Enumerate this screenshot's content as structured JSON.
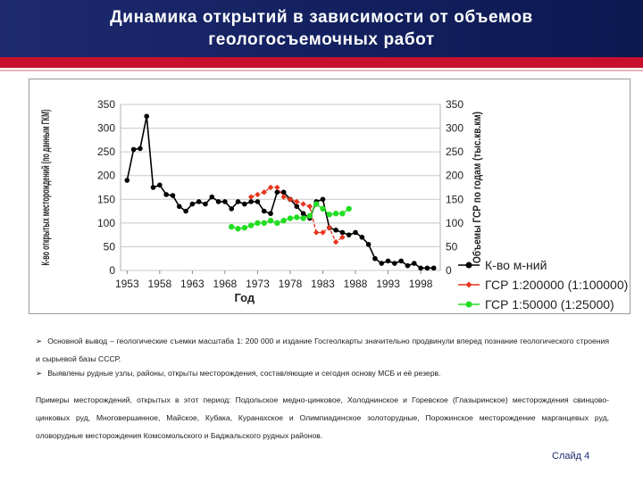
{
  "header": {
    "title_line1": "Динамика открытий в зависимости от объемов",
    "title_line2": "геологосъемочных работ"
  },
  "colors": {
    "header_bg": "#13205f",
    "accent_red": "#c8102e",
    "series_black": "#000000",
    "series_red": "#e8341c",
    "series_green": "#22dd22"
  },
  "chart_data": {
    "type": "line",
    "x_ticks": [
      1953,
      1958,
      1963,
      1968,
      1973,
      1978,
      1983,
      1988,
      1993,
      1998
    ],
    "y_ticks": [
      0,
      50,
      100,
      150,
      200,
      250,
      300,
      350
    ],
    "ylim": [
      0,
      350
    ],
    "xlim": [
      1952,
      2001
    ],
    "xlabel": "Год",
    "ylabel_left": "К-во открытых месторождений (по данным ГКМ)",
    "ylabel_right": "Объемы ГСР по годам (тыс.кв.км)",
    "legend_position": "right",
    "series": [
      {
        "name": "К-во м-ний",
        "color": "#000000",
        "marker": "circle",
        "x": [
          1953,
          1954,
          1955,
          1956,
          1957,
          1958,
          1959,
          1960,
          1961,
          1962,
          1963,
          1964,
          1965,
          1966,
          1967,
          1968,
          1969,
          1970,
          1971,
          1972,
          1973,
          1974,
          1975,
          1976,
          1977,
          1978,
          1979,
          1980,
          1981,
          1982,
          1983,
          1984,
          1985,
          1986,
          1987,
          1988,
          1989,
          1990,
          1991,
          1992,
          1993,
          1994,
          1995,
          1996,
          1997,
          1998,
          1999,
          2000
        ],
        "values": [
          190,
          255,
          257,
          325,
          175,
          180,
          160,
          158,
          135,
          125,
          140,
          145,
          140,
          155,
          145,
          145,
          130,
          145,
          140,
          145,
          145,
          125,
          120,
          165,
          165,
          150,
          135,
          120,
          110,
          145,
          150,
          90,
          85,
          80,
          75,
          80,
          70,
          55,
          25,
          15,
          20,
          15,
          20,
          10,
          15,
          5,
          5,
          5
        ]
      },
      {
        "name": "ГСР 1:200000 (1:100000)",
        "color": "#e8341c",
        "marker": "diamond",
        "x": [
          1972,
          1973,
          1974,
          1975,
          1976,
          1977,
          1978,
          1979,
          1980,
          1981,
          1982,
          1983,
          1984,
          1985,
          1986
        ],
        "values": [
          155,
          160,
          165,
          175,
          175,
          155,
          150,
          145,
          140,
          135,
          80,
          80,
          90,
          60,
          70
        ]
      },
      {
        "name": "ГСР 1:50000 (1:25000)",
        "color": "#22dd22",
        "marker": "circle",
        "x": [
          1969,
          1970,
          1971,
          1972,
          1973,
          1974,
          1975,
          1976,
          1977,
          1978,
          1979,
          1980,
          1981,
          1982,
          1983,
          1984,
          1985,
          1986,
          1987
        ],
        "values": [
          92,
          88,
          90,
          95,
          100,
          100,
          105,
          100,
          105,
          110,
          112,
          110,
          115,
          140,
          130,
          118,
          120,
          120,
          130
        ]
      }
    ]
  },
  "body": {
    "p1": "Основной вывод – геологические съемки масштаба 1: 200 000 и издание Госгеолкарты значительно продвинули вперед познание геологического строения и сырьевой базы СССР.",
    "p2": "Выявлены рудные узлы, районы, открыты месторождения, составляющие и сегодня основу МСБ и её резерв.",
    "p3": "Примеры месторождений, открытых в этот период: Подольское медно-цинковое, Холоднинское и Горевское (Глазыринское) месторождения свинцово-цинковых руд, Многовершинное, Майское, Кубака, Куранахское и Олимпиадинское золоторудные, Порожинское месторождение марганцевых руд, оловорудные месторождения Комсомольского и Баджальского рудных районов."
  },
  "slide_number": "Слайд 4"
}
